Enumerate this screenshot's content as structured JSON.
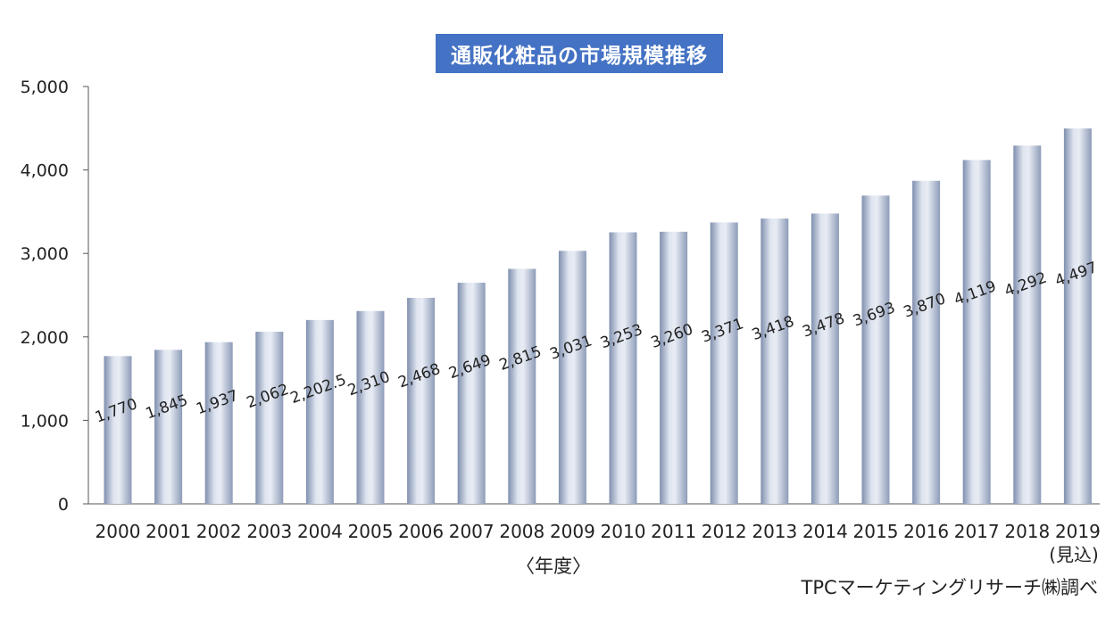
{
  "chart_data": {
    "type": "bar",
    "title": "通販化粧品の市場規模推移",
    "xlabel": "〈年度〉",
    "ylabel": "",
    "ylim": [
      0,
      5000
    ],
    "yticks": [
      "0",
      "1,000",
      "2,000",
      "3,000",
      "4,000",
      "5,000"
    ],
    "ytick_values": [
      0,
      1000,
      2000,
      3000,
      4000,
      5000
    ],
    "categories": [
      "2000",
      "2001",
      "2002",
      "2003",
      "2004",
      "2005",
      "2006",
      "2007",
      "2008",
      "2009",
      "2010",
      "2011",
      "2012",
      "2013",
      "2014",
      "2015",
      "2016",
      "2017",
      "2018",
      "2019"
    ],
    "values": [
      1770,
      1845,
      1937,
      2062,
      2202.5,
      2310,
      2468,
      2649,
      2815,
      3031,
      3253,
      3260,
      3371,
      3418,
      3478,
      3693,
      3870,
      4119,
      4292,
      4497
    ],
    "data_labels": [
      "1,770",
      "1,845",
      "1,937",
      "2,062",
      "2,202.5",
      "2,310",
      "2,468",
      "2,649",
      "2,815",
      "3,031",
      "3,253",
      "3,260",
      "3,371",
      "3,418",
      "3,478",
      "3,693",
      "3,870",
      "4,119",
      "4,292",
      "4,497"
    ],
    "annotations": [
      "(見込)"
    ],
    "source": "TPCマーケティングリサーチ㈱調べ",
    "grid": false,
    "legend": "none",
    "colors": {
      "title_bg": "#4472c4",
      "bar_light": "#e4e9f3",
      "bar_mid": "#b8c3d8",
      "bar_dark": "#7f8fae"
    }
  }
}
